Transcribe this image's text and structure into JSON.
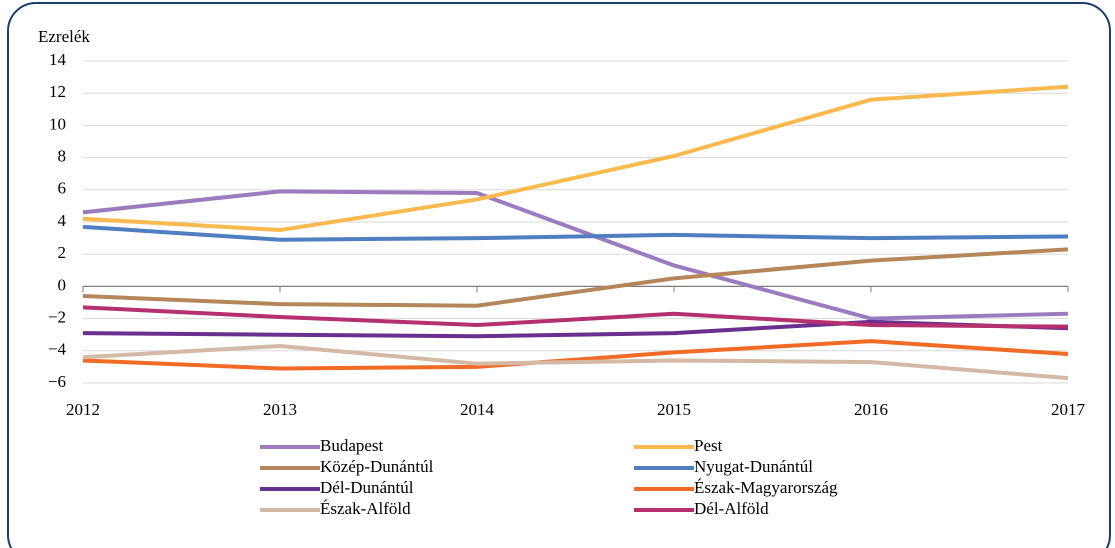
{
  "chart_data": {
    "type": "line",
    "y_label": "Ezrelék",
    "categories": [
      "2012",
      "2013",
      "2014",
      "2015",
      "2016",
      "2017"
    ],
    "ylim": [
      -6,
      14
    ],
    "yticks": [
      {
        "value": -6,
        "label": "−6"
      },
      {
        "value": -4,
        "label": "−4"
      },
      {
        "value": -2,
        "label": "−2"
      },
      0,
      2,
      4,
      6,
      8,
      10,
      12,
      14
    ],
    "grid": true,
    "series": [
      {
        "name": "Budapest",
        "color": "#9b7bbf",
        "values": [
          4.6,
          5.9,
          5.8,
          1.3,
          -2.0,
          -1.7
        ]
      },
      {
        "name": "Pest",
        "color": "#f9b94f",
        "values": [
          4.2,
          3.5,
          5.4,
          8.1,
          11.6,
          12.4
        ]
      },
      {
        "name": "Közép-Dunántúl",
        "color": "#b5865a",
        "values": [
          -0.6,
          -1.1,
          -1.2,
          0.5,
          1.6,
          2.3
        ]
      },
      {
        "name": "Nyugat-Dunántúl",
        "color": "#4f7fc0",
        "values": [
          3.7,
          2.9,
          3.0,
          3.2,
          3.0,
          3.1
        ]
      },
      {
        "name": "Dél-Dunántúl",
        "color": "#6b2f8f",
        "values": [
          -2.9,
          -3.0,
          -3.1,
          -2.9,
          -2.2,
          -2.6
        ]
      },
      {
        "name": "Észak-Magyarország",
        "color": "#f26b26",
        "values": [
          -4.6,
          -5.1,
          -5.0,
          -4.1,
          -3.4,
          -4.2
        ]
      },
      {
        "name": "Észak-Alföld",
        "color": "#d4b9a6",
        "values": [
          -4.4,
          -3.7,
          -4.8,
          -4.6,
          -4.7,
          -5.7
        ]
      },
      {
        "name": "Dél-Alföld",
        "color": "#b5306e",
        "values": [
          -1.3,
          -1.9,
          -2.4,
          -1.7,
          -2.4,
          -2.5
        ]
      }
    ]
  }
}
